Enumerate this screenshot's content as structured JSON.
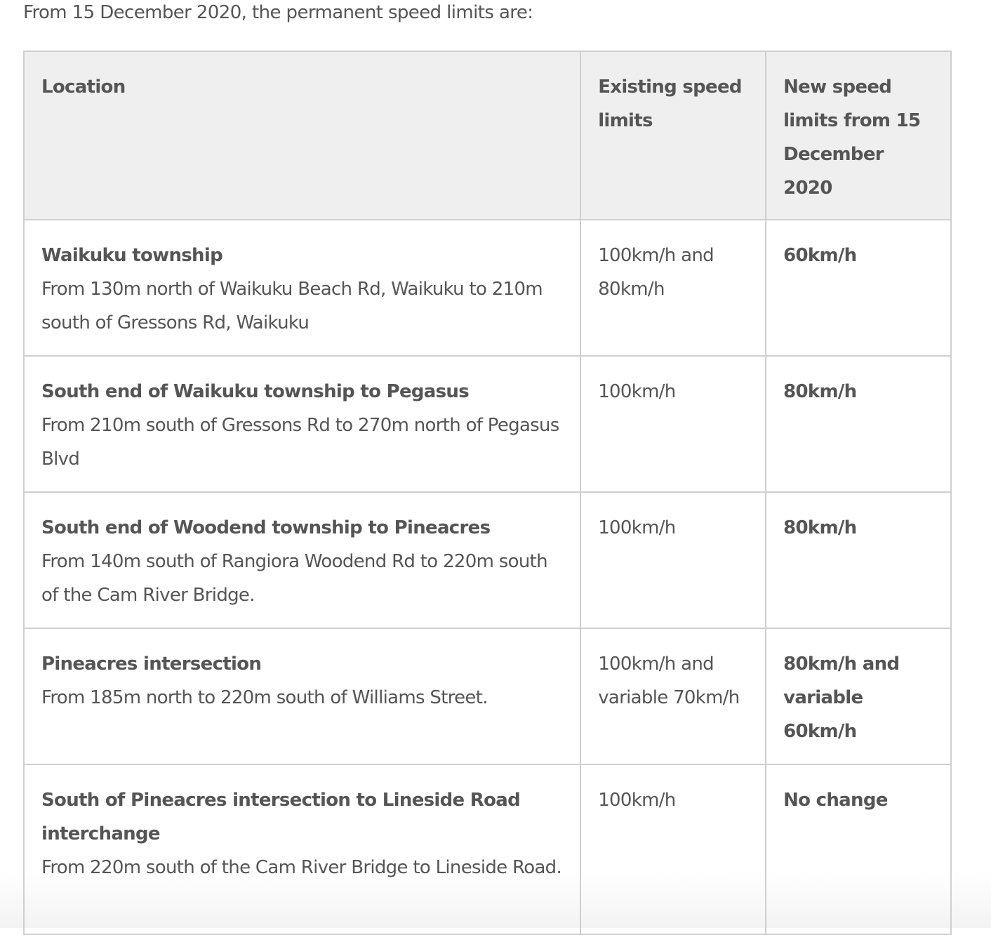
{
  "intro": "From 15 December 2020, the permanent speed limits are:",
  "table": {
    "headers": [
      "Location",
      "Existing speed limits",
      "New speed limits from 15 December 2020"
    ],
    "rows": [
      {
        "title": "Waikuku township",
        "desc": "From 130m north of Waikuku Beach Rd, Waikuku to 210m south of Gressons Rd, Waikuku",
        "existing": "100km/h and 80km/h",
        "new": "60km/h"
      },
      {
        "title": "South end of Waikuku township to Pegasus",
        "desc": "From 210m south of Gressons Rd to 270m north of Pegasus Blvd",
        "existing": "100km/h",
        "new": "80km/h"
      },
      {
        "title": "South end of Woodend township to Pineacres",
        "desc": "From 140m south of Rangiora Woodend Rd to 220m south of the Cam River Bridge.",
        "existing": "100km/h",
        "new": "80km/h"
      },
      {
        "title": "Pineacres intersection",
        "desc": "From 185m north to 220m south of Williams Street.",
        "existing": "100km/h and variable 70km/h",
        "new": "80km/h and variable 60km/h"
      },
      {
        "title": "South of Pineacres intersection to Lineside Road interchange",
        "desc": "From 220m south of the Cam River Bridge to Lineside Road.",
        "existing": "100km/h",
        "new": "No change"
      }
    ]
  }
}
